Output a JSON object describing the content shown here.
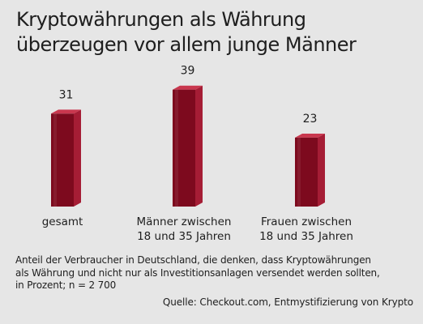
{
  "title_lines": [
    "Kryptowährungen als Währung",
    "überzeugen vor allem junge Männer"
  ],
  "chart_data": {
    "type": "bar",
    "categories": [
      [
        "gesamt"
      ],
      [
        "Männer zwischen",
        "18 und 35 Jahren"
      ],
      [
        "Frauen zwischen",
        "18 und 35 Jahren"
      ]
    ],
    "values": [
      31,
      39,
      23
    ],
    "value_labels": [
      "31",
      "39",
      "23"
    ],
    "style": "3d",
    "grid": false,
    "legend": "none"
  },
  "colors": {
    "background": "#e6e6e6",
    "bar_front": "#7d0a1e",
    "bar_side": "#a51d35",
    "bar_top": "#c9374e",
    "text": "#1e1e1e"
  },
  "footnote_lines": [
    "Anteil der Verbraucher in  Deutschland, die denken, dass Kryptowährungen",
    "als Währung und nicht nur als Investitionsanlagen versendet werden sollten,",
    "in Prozent; n = 2 700"
  ],
  "source": "Quelle: Checkout.com, Entmystifizierung von Krypto"
}
